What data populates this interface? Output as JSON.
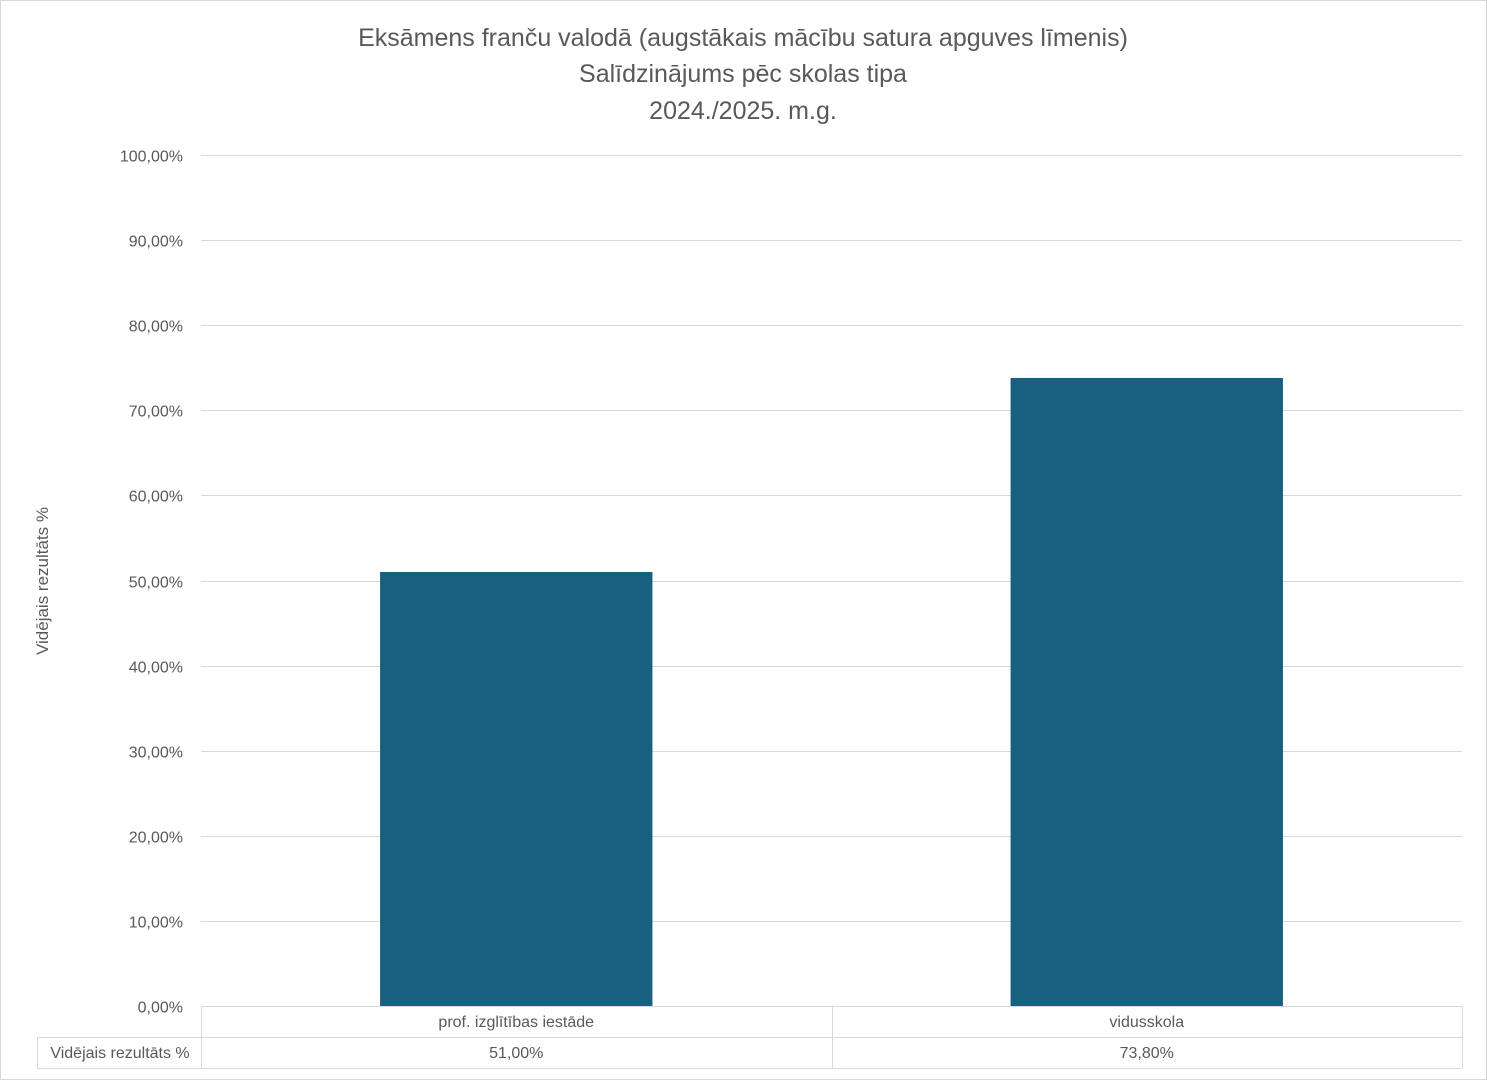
{
  "chart_data": {
    "type": "bar",
    "title": [
      "Eksāmens franču valodā (augstākais mācību satura apguves līmenis)",
      "Salīdzinājums pēc skolas tipa",
      "2024./2025. m.g."
    ],
    "ylabel": "Vidējais rezultāts %",
    "categories": [
      "prof. izglītības iestāde",
      "vidusskola"
    ],
    "series": [
      {
        "name": "Vidējais rezultāts %",
        "values": [
          51.0,
          73.8
        ],
        "labels": [
          "51,00%",
          "73,80%"
        ],
        "color": "#17607f"
      }
    ],
    "ylim": [
      0,
      100
    ],
    "yticks": [
      0,
      10,
      20,
      30,
      40,
      50,
      60,
      70,
      80,
      90,
      100
    ],
    "ytick_labels": [
      "0,00%",
      "10,00%",
      "20,00%",
      "30,00%",
      "40,00%",
      "50,00%",
      "60,00%",
      "70,00%",
      "80,00%",
      "90,00%",
      "100,00%"
    ],
    "grid": true,
    "legend": "data table below chart",
    "colors": {
      "bar": "#17607f",
      "grid": "#d9d9d9",
      "text": "#595959"
    }
  }
}
